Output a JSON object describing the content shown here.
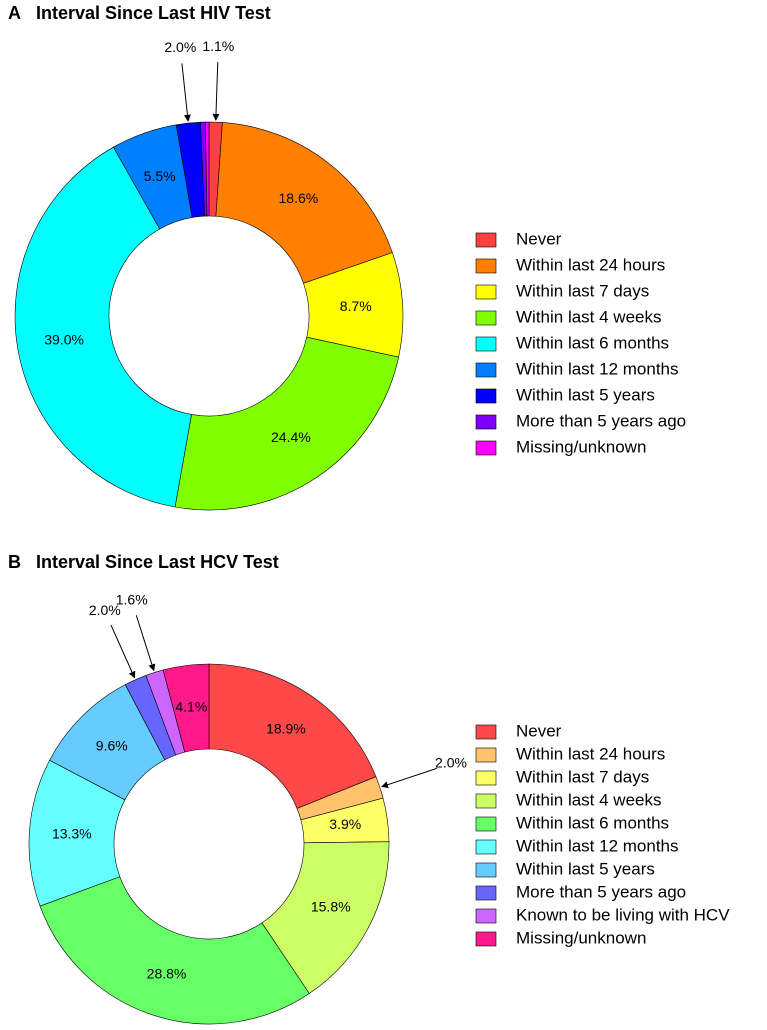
{
  "chart_data": [
    {
      "type": "donut",
      "panel": "A",
      "title": "Interval Since Last HIV Test",
      "categories": [
        "Never",
        "Within last 24 hours",
        "Within last 7 days",
        "Within last 4 weeks",
        "Within last 6 months",
        "Within last 12 months",
        "Within last 5 years",
        "More than 5 years ago",
        "Missing/unknown"
      ],
      "values": [
        1.1,
        18.6,
        8.7,
        24.4,
        39.0,
        5.5,
        2.0,
        0.4,
        0.3
      ],
      "value_labels": [
        "1.1%",
        "18.6%",
        "8.7%",
        "24.4%",
        "39.0%",
        "5.5%",
        "2.0%",
        null,
        null
      ],
      "colors": [
        "#ff4040",
        "#ff8000",
        "#ffff00",
        "#80ff00",
        "#00ffff",
        "#0080ff",
        "#0000ff",
        "#8000ff",
        "#ff00ff"
      ]
    },
    {
      "type": "donut",
      "panel": "B",
      "title": "Interval Since Last HCV Test",
      "categories": [
        "Never",
        "Within last 24 hours",
        "Within last 7 days",
        "Within last 4 weeks",
        "Within last 6 months",
        "Within last 12 months",
        "Within last 5 years",
        "More than 5 years ago",
        "Known to be living with HCV",
        "Missing/unknown"
      ],
      "values": [
        18.9,
        2.0,
        3.9,
        15.8,
        28.8,
        13.3,
        9.6,
        2.0,
        1.6,
        4.1
      ],
      "value_labels": [
        "18.9%",
        "2.0%",
        "3.9%",
        "15.8%",
        "28.8%",
        "13.3%",
        "9.6%",
        "2.0%",
        "1.6%",
        "4.1%"
      ],
      "colors": [
        "#ff4848",
        "#ffc36b",
        "#ffff66",
        "#ccff66",
        "#66ff66",
        "#66ffff",
        "#66ccff",
        "#6666ff",
        "#cc66ff",
        "#ff1a8c"
      ]
    }
  ]
}
